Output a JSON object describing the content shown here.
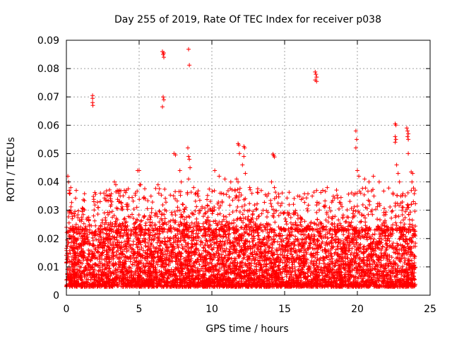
{
  "chart_data": {
    "type": "scatter",
    "title": "Day 255 of 2019, Rate Of TEC Index for receiver p038",
    "xlabel": "GPS time / hours",
    "ylabel": "ROTI / TECUs",
    "xlim": [
      0,
      25
    ],
    "ylim": [
      0,
      0.09
    ],
    "xticks": [
      0,
      5,
      10,
      15,
      20,
      25
    ],
    "xtick_labels": [
      "0",
      "5",
      "10",
      "15",
      "20",
      "25"
    ],
    "yticks": [
      0,
      0.01,
      0.02,
      0.03,
      0.04,
      0.05,
      0.06,
      0.07,
      0.08,
      0.09
    ],
    "ytick_labels": [
      "0",
      "0.01",
      "0.02",
      "0.03",
      "0.04",
      "0.05",
      "0.06",
      "0.07",
      "0.08",
      "0.09"
    ],
    "grid": true,
    "marker": "+",
    "color": "#ff0000",
    "series": [
      {
        "name": "ROTI",
        "points": [
          [
            0.1,
            0.042
          ],
          [
            0.15,
            0.04
          ],
          [
            0.2,
            0.037
          ],
          [
            0.25,
            0.036
          ],
          [
            0.3,
            0.038
          ],
          [
            0.3,
            0.03
          ],
          [
            0.35,
            0.029
          ],
          [
            0.4,
            0.027
          ],
          [
            1.8,
            0.0705
          ],
          [
            1.8,
            0.0695
          ],
          [
            1.8,
            0.068
          ],
          [
            1.82,
            0.067
          ],
          [
            3.3,
            0.04
          ],
          [
            3.4,
            0.039
          ],
          [
            3.5,
            0.037
          ],
          [
            3.6,
            0.036
          ],
          [
            3.7,
            0.035
          ],
          [
            4.9,
            0.044
          ],
          [
            5.0,
            0.044
          ],
          [
            5.05,
            0.039
          ],
          [
            5.1,
            0.039
          ],
          [
            6.3,
            0.039
          ],
          [
            6.35,
            0.036
          ],
          [
            6.6,
            0.086
          ],
          [
            6.65,
            0.085
          ],
          [
            6.7,
            0.0855
          ],
          [
            6.7,
            0.084
          ],
          [
            6.65,
            0.07
          ],
          [
            6.7,
            0.069
          ],
          [
            6.6,
            0.0665
          ],
          [
            7.4,
            0.05
          ],
          [
            7.5,
            0.0495
          ],
          [
            7.8,
            0.044
          ],
          [
            7.9,
            0.04
          ],
          [
            8.4,
            0.0868
          ],
          [
            8.45,
            0.0812
          ],
          [
            8.35,
            0.052
          ],
          [
            8.4,
            0.049
          ],
          [
            8.45,
            0.048
          ],
          [
            8.5,
            0.045
          ],
          [
            8.4,
            0.041
          ],
          [
            10.2,
            0.044
          ],
          [
            10.5,
            0.042
          ],
          [
            10.9,
            0.041
          ],
          [
            11.3,
            0.04
          ],
          [
            11.8,
            0.0535
          ],
          [
            11.85,
            0.053
          ],
          [
            11.9,
            0.05
          ],
          [
            12.2,
            0.0525
          ],
          [
            12.25,
            0.052
          ],
          [
            12.2,
            0.049
          ],
          [
            12.1,
            0.046
          ],
          [
            12.3,
            0.043
          ],
          [
            11.7,
            0.041
          ],
          [
            11.8,
            0.04
          ],
          [
            12.6,
            0.038
          ],
          [
            14.2,
            0.0498
          ],
          [
            14.25,
            0.0493
          ],
          [
            14.3,
            0.0488
          ],
          [
            14.1,
            0.04
          ],
          [
            14.3,
            0.038
          ],
          [
            17.1,
            0.0788
          ],
          [
            17.15,
            0.078
          ],
          [
            17.2,
            0.077
          ],
          [
            17.1,
            0.076
          ],
          [
            17.2,
            0.0755
          ],
          [
            17.2,
            0.037
          ],
          [
            16.9,
            0.035
          ],
          [
            19.9,
            0.058
          ],
          [
            19.95,
            0.055
          ],
          [
            19.9,
            0.052
          ],
          [
            20.0,
            0.044
          ],
          [
            20.1,
            0.042
          ],
          [
            20.5,
            0.041
          ],
          [
            20.8,
            0.04
          ],
          [
            21.1,
            0.042
          ],
          [
            21.5,
            0.04
          ],
          [
            22.6,
            0.0605
          ],
          [
            22.65,
            0.06
          ],
          [
            22.6,
            0.056
          ],
          [
            22.65,
            0.055
          ],
          [
            22.6,
            0.054
          ],
          [
            22.7,
            0.046
          ],
          [
            22.8,
            0.043
          ],
          [
            22.9,
            0.04
          ],
          [
            23.4,
            0.059
          ],
          [
            23.45,
            0.058
          ],
          [
            23.5,
            0.057
          ],
          [
            23.45,
            0.056
          ],
          [
            23.5,
            0.055
          ],
          [
            23.5,
            0.05
          ],
          [
            23.7,
            0.0435
          ],
          [
            23.8,
            0.043
          ],
          [
            23.75,
            0.04
          ]
        ]
      }
    ],
    "dense_band": {
      "x_range": [
        0,
        24
      ],
      "typical_range": [
        0.003,
        0.023
      ],
      "upper_envelope_range": [
        0.023,
        0.038
      ]
    }
  }
}
